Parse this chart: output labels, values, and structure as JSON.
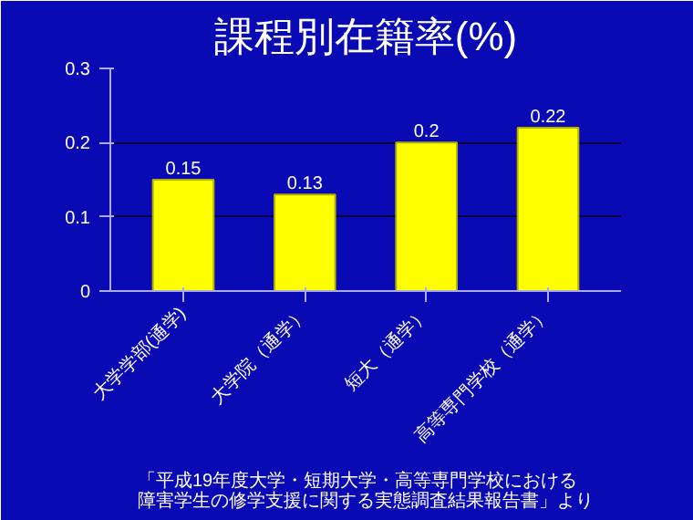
{
  "chart_data": {
    "type": "bar",
    "title": "課程別在籍率(%)",
    "categories": [
      "大学学部(通学)",
      "大学院（通学）",
      "短大（通学）",
      "高等専門学校（通学）"
    ],
    "values": [
      0.15,
      0.13,
      0.2,
      0.22
    ],
    "color": "#ffff00",
    "ylim": [
      0,
      0.3
    ],
    "yticks": [
      0,
      0.1,
      0.2,
      0.3
    ],
    "grid": "y",
    "data_labels": true,
    "annotations": [
      "「平成19年度大学・短期大学・高等専門学校における障害学生の修学支援に関する実態調査結果報告書」より"
    ]
  }
}
